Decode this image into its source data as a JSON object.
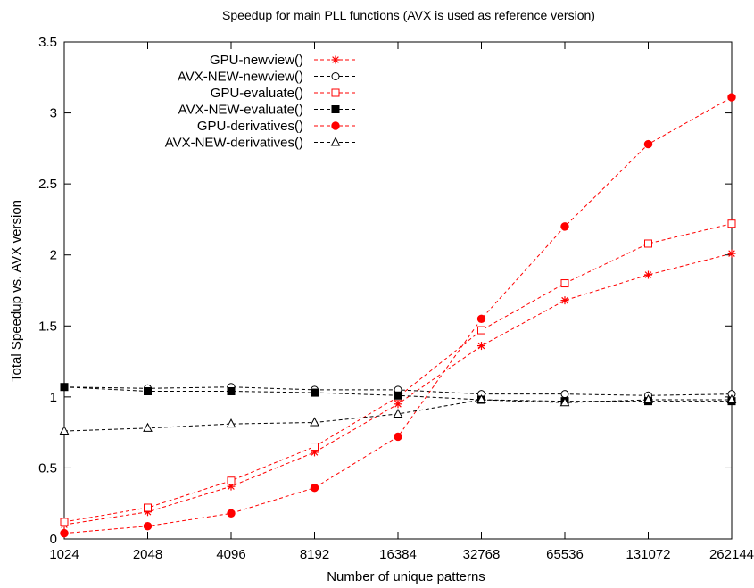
{
  "chart_data": {
    "type": "line",
    "title": "Speedup for main PLL functions (AVX is used as reference version)",
    "xlabel": "Number of unique patterns",
    "ylabel": "Total Speedup vs. AVX version",
    "x_scale": "log2",
    "categories": [
      "1024",
      "2048",
      "4096",
      "8192",
      "16384",
      "32768",
      "65536",
      "131072",
      "262144"
    ],
    "ylim": [
      0,
      3.5
    ],
    "yticks": [
      "0",
      "0.5",
      "1",
      "1.5",
      "2",
      "2.5",
      "3",
      "3.5"
    ],
    "grid": false,
    "legend_position": "top-left",
    "series": [
      {
        "name": "GPU-newview()",
        "color": "#ff0000",
        "marker": "star",
        "values": [
          0.1,
          0.19,
          0.37,
          0.61,
          0.95,
          1.36,
          1.68,
          1.86,
          2.01
        ]
      },
      {
        "name": "AVX-NEW-newview()",
        "color": "#000000",
        "marker": "circle-open",
        "values": [
          1.07,
          1.06,
          1.07,
          1.05,
          1.05,
          1.02,
          1.02,
          1.01,
          1.02
        ]
      },
      {
        "name": "GPU-evaluate()",
        "color": "#ff0000",
        "marker": "square-open",
        "values": [
          0.12,
          0.22,
          0.41,
          0.65,
          1.0,
          1.47,
          1.8,
          2.08,
          2.22
        ]
      },
      {
        "name": "AVX-NEW-evaluate()",
        "color": "#000000",
        "marker": "square-filled",
        "values": [
          1.07,
          1.04,
          1.04,
          1.03,
          1.01,
          0.98,
          0.97,
          0.97,
          0.97
        ]
      },
      {
        "name": "GPU-derivatives()",
        "color": "#ff0000",
        "marker": "circle-filled",
        "values": [
          0.04,
          0.09,
          0.18,
          0.36,
          0.72,
          1.55,
          2.2,
          2.78,
          3.11
        ]
      },
      {
        "name": "AVX-NEW-derivatives()",
        "color": "#000000",
        "marker": "triangle-open",
        "values": [
          0.76,
          0.78,
          0.81,
          0.82,
          0.88,
          0.98,
          0.96,
          0.98,
          0.98
        ]
      }
    ]
  }
}
